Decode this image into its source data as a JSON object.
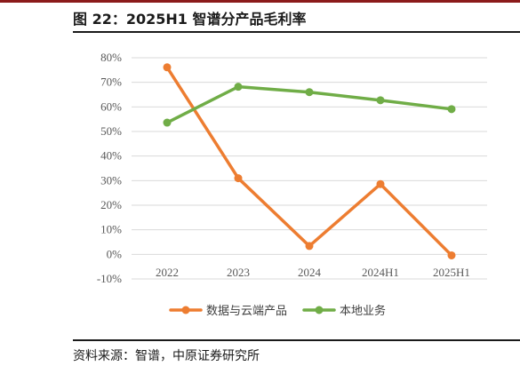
{
  "figure": {
    "title": "图 22：2025H1 智谱分产品毛利率",
    "source": "资料来源：智谱，中原证券研究所"
  },
  "chart_data": {
    "type": "line",
    "title": "",
    "xlabel": "",
    "ylabel": "",
    "categories": [
      "2022",
      "2023",
      "2024",
      "2024H1",
      "2025H1"
    ],
    "ylim": [
      -10,
      80
    ],
    "yticks": [
      -10,
      0,
      10,
      20,
      30,
      40,
      50,
      60,
      70,
      80
    ],
    "ytick_labels": [
      "-10%",
      "0%",
      "10%",
      "20%",
      "30%",
      "40%",
      "50%",
      "60%",
      "70%",
      "80%"
    ],
    "grid": true,
    "legend_position": "bottom",
    "series": [
      {
        "name": "数据与云端产品",
        "color": "#ed7d31",
        "values": [
          76.1,
          31.0,
          3.4,
          28.6,
          -0.4
        ]
      },
      {
        "name": "本地业务",
        "color": "#70ad47",
        "values": [
          53.6,
          68.2,
          66.0,
          62.7,
          59.1
        ]
      }
    ]
  }
}
